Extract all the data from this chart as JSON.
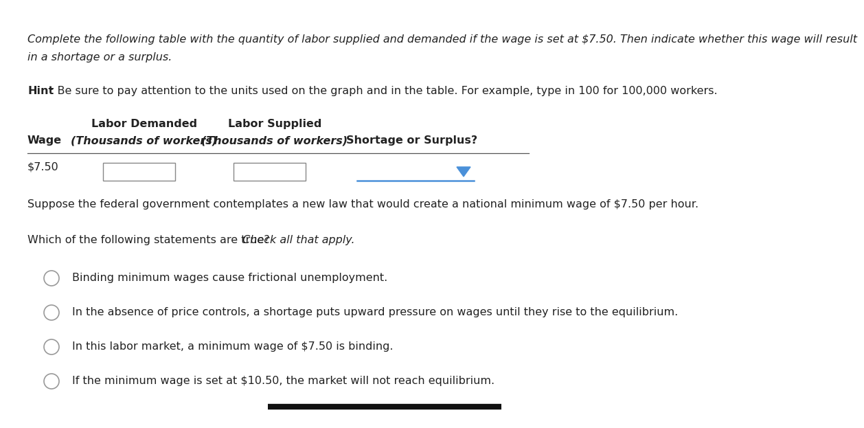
{
  "bg_color": "#ffffff",
  "title_line1": "Complete the following table with the quantity of labor supplied and demanded if the wage is set at $7.50. Then indicate whether this wage will result",
  "title_line2": "in a shortage or a surplus.",
  "hint_bold": "Hint",
  "hint_normal": ": Be sure to pay attention to the units used on the graph and in the table. For example, type in 100 for 100,000 workers.",
  "col_header1": "Labor Demanded",
  "col_header2": "Labor Supplied",
  "col_sub1": "(Thousands of workers)",
  "col_sub2": "(Thousands of workers)",
  "col_wage_label": "Wage",
  "col_shortage_label": "Shortage or Surplus?",
  "wage_value": "$7.50",
  "suppose_text": "Suppose the federal government contemplates a new law that would create a national minimum wage of $7.50 per hour.",
  "which_text": "Which of the following statements are true?",
  "which_italic": " Check all that apply.",
  "options": [
    "Binding minimum wages cause frictional unemployment.",
    "In the absence of price controls, a shortage puts upward pressure on wages until they rise to the equilibrium.",
    "In this labor market, a minimum wage of $7.50 is binding.",
    "If the minimum wage is set at $10.50, the market will not reach equilibrium."
  ],
  "font_size_title": 11.5,
  "font_size_hint": 11.5,
  "font_size_table": 11.5,
  "font_size_options": 11.5,
  "text_color": "#222222",
  "line_color": "#555555",
  "box_color": "#888888",
  "blue_color": "#4a90d9",
  "circle_color": "#999999"
}
